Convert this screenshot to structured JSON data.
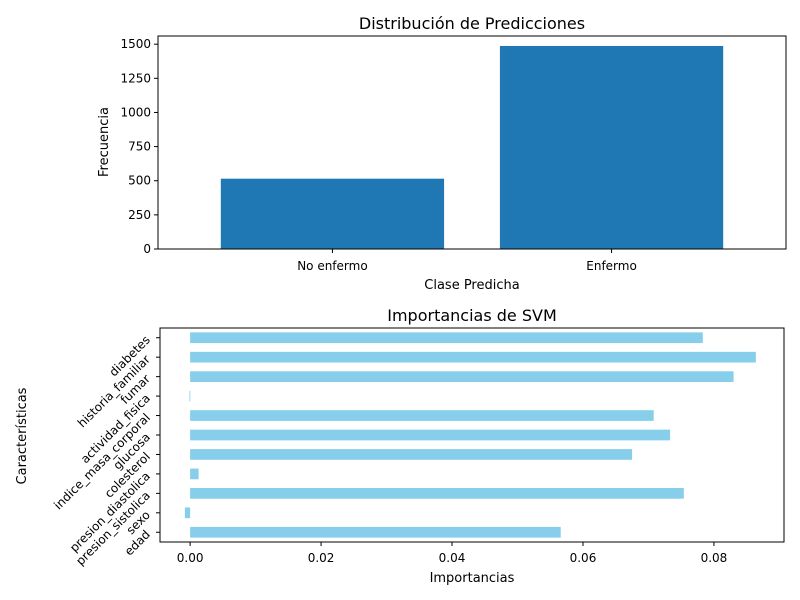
{
  "chart_data": [
    {
      "type": "bar",
      "title": "Distribución de Predicciones",
      "xlabel": "Clase Predicha",
      "ylabel": "Frecuencia",
      "categories": [
        "No enfermo",
        "Enfermo"
      ],
      "values": [
        515,
        1487
      ],
      "ylim": [
        0,
        1560
      ],
      "yticks": [
        0,
        250,
        500,
        750,
        1000,
        1250,
        1500
      ],
      "color": "#1f77b4"
    },
    {
      "type": "bar",
      "orientation": "horizontal",
      "title": "Importancias de SVM",
      "xlabel": "Importancias",
      "ylabel": "Características",
      "categories": [
        "edad",
        "sexo",
        "presion_sistolica",
        "presion_diastolica",
        "colesterol",
        "glucosa",
        "indice_masa_corporal",
        "actividad_fisica",
        "fumar",
        "historia_familiar",
        "diabetes"
      ],
      "values": [
        0.0566,
        -0.0008,
        0.0754,
        0.0013,
        0.0675,
        0.0733,
        0.0708,
        -0.0001,
        0.083,
        0.0864,
        0.0783
      ],
      "xlim": [
        -0.0046,
        0.0907
      ],
      "xticks": [
        0.0,
        0.02,
        0.04,
        0.06,
        0.08
      ],
      "xtick_labels": [
        "0.00",
        "0.02",
        "0.04",
        "0.06",
        "0.08"
      ],
      "color": "#87ceeb"
    }
  ]
}
